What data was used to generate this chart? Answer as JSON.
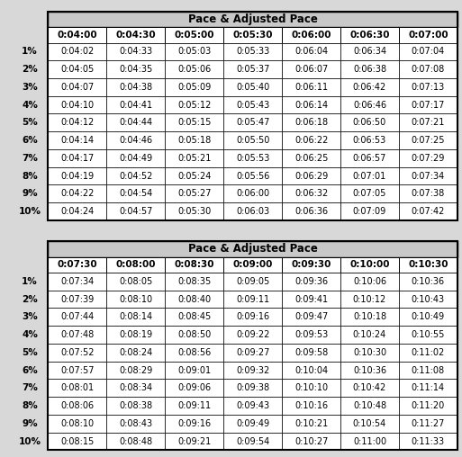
{
  "title": "Pace & Adjusted Pace",
  "table1": {
    "col_headers": [
      "0:04:00",
      "0:04:30",
      "0:05:00",
      "0:05:30",
      "0:06:00",
      "0:06:30",
      "0:07:00"
    ],
    "row_headers": [
      "1%",
      "2%",
      "3%",
      "4%",
      "5%",
      "6%",
      "7%",
      "8%",
      "9%",
      "10%"
    ],
    "data": [
      [
        "0:04:02",
        "0:04:33",
        "0:05:03",
        "0:05:33",
        "0:06:04",
        "0:06:34",
        "0:07:04"
      ],
      [
        "0:04:05",
        "0:04:35",
        "0:05:06",
        "0:05:37",
        "0:06:07",
        "0:06:38",
        "0:07:08"
      ],
      [
        "0:04:07",
        "0:04:38",
        "0:05:09",
        "0:05:40",
        "0:06:11",
        "0:06:42",
        "0:07:13"
      ],
      [
        "0:04:10",
        "0:04:41",
        "0:05:12",
        "0:05:43",
        "0:06:14",
        "0:06:46",
        "0:07:17"
      ],
      [
        "0:04:12",
        "0:04:44",
        "0:05:15",
        "0:05:47",
        "0:06:18",
        "0:06:50",
        "0:07:21"
      ],
      [
        "0:04:14",
        "0:04:46",
        "0:05:18",
        "0:05:50",
        "0:06:22",
        "0:06:53",
        "0:07:25"
      ],
      [
        "0:04:17",
        "0:04:49",
        "0:05:21",
        "0:05:53",
        "0:06:25",
        "0:06:57",
        "0:07:29"
      ],
      [
        "0:04:19",
        "0:04:52",
        "0:05:24",
        "0:05:56",
        "0:06:29",
        "0:07:01",
        "0:07:34"
      ],
      [
        "0:04:22",
        "0:04:54",
        "0:05:27",
        "0:06:00",
        "0:06:32",
        "0:07:05",
        "0:07:38"
      ],
      [
        "0:04:24",
        "0:04:57",
        "0:05:30",
        "0:06:03",
        "0:06:36",
        "0:07:09",
        "0:07:42"
      ]
    ]
  },
  "table2": {
    "col_headers": [
      "0:07:30",
      "0:08:00",
      "0:08:30",
      "0:09:00",
      "0:09:30",
      "0:10:00",
      "0:10:30"
    ],
    "row_headers": [
      "1%",
      "2%",
      "3%",
      "4%",
      "5%",
      "6%",
      "7%",
      "8%",
      "9%",
      "10%"
    ],
    "data": [
      [
        "0:07:34",
        "0:08:05",
        "0:08:35",
        "0:09:05",
        "0:09:36",
        "0:10:06",
        "0:10:36"
      ],
      [
        "0:07:39",
        "0:08:10",
        "0:08:40",
        "0:09:11",
        "0:09:41",
        "0:10:12",
        "0:10:43"
      ],
      [
        "0:07:44",
        "0:08:14",
        "0:08:45",
        "0:09:16",
        "0:09:47",
        "0:10:18",
        "0:10:49"
      ],
      [
        "0:07:48",
        "0:08:19",
        "0:08:50",
        "0:09:22",
        "0:09:53",
        "0:10:24",
        "0:10:55"
      ],
      [
        "0:07:52",
        "0:08:24",
        "0:08:56",
        "0:09:27",
        "0:09:58",
        "0:10:30",
        "0:11:02"
      ],
      [
        "0:07:57",
        "0:08:29",
        "0:09:01",
        "0:09:32",
        "0:10:04",
        "0:10:36",
        "0:11:08"
      ],
      [
        "0:08:01",
        "0:08:34",
        "0:09:06",
        "0:09:38",
        "0:10:10",
        "0:10:42",
        "0:11:14"
      ],
      [
        "0:08:06",
        "0:08:38",
        "0:09:11",
        "0:09:43",
        "0:10:16",
        "0:10:48",
        "0:11:20"
      ],
      [
        "0:08:10",
        "0:08:43",
        "0:09:16",
        "0:09:49",
        "0:10:21",
        "0:10:54",
        "0:11:27"
      ],
      [
        "0:08:15",
        "0:08:48",
        "0:09:21",
        "0:09:54",
        "0:10:27",
        "0:11:00",
        "0:11:33"
      ]
    ]
  },
  "title_bg": "#c8c8c8",
  "col_header_bg": "#ffffff",
  "data_bg": "#ffffff",
  "border_color": "#000000",
  "fig_bg": "#d8d8d8",
  "title_fontsize": 8.5,
  "header_fontsize": 7.5,
  "data_fontsize": 7.0,
  "row_header_fontsize": 7.5
}
